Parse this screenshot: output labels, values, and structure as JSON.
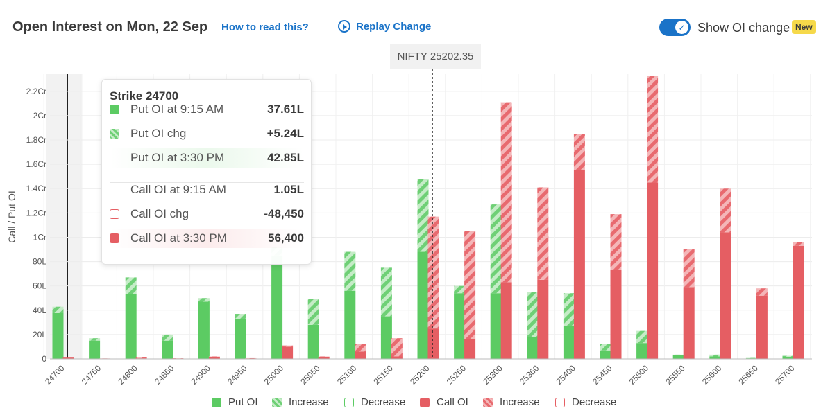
{
  "header": {
    "title": "Open Interest on Mon, 22 Sep",
    "how_to_read": "How to read this?",
    "replay": "Replay Change",
    "toggle_label": "Show OI change",
    "new_badge": "New",
    "toggle_on": true
  },
  "spot_label": "NIFTY 25202.35",
  "colors": {
    "put": "#5ccb63",
    "put_light": "#a6e3a8",
    "call": "#e55e63",
    "call_light": "#f0a5a8",
    "accent": "#1a73c8"
  },
  "tooltip": {
    "title": "Strike 24700",
    "rows": [
      {
        "label": "Put OI at 9:15 AM",
        "value": "37.61L",
        "icon": "put-solid"
      },
      {
        "label": "Put OI chg",
        "value": "+5.24L",
        "icon": "put-hatched"
      },
      {
        "label": "Put OI at 3:30 PM",
        "value": "42.85L",
        "icon": "put-highlight"
      },
      {
        "label": "Call OI at 9:15 AM",
        "value": "1.05L",
        "icon": "none"
      },
      {
        "label": "Call OI chg",
        "value": "-48,450",
        "icon": "call-outline"
      },
      {
        "label": "Call OI at 3:30 PM",
        "value": "56,400",
        "icon": "call-solid"
      }
    ]
  },
  "legend": [
    "Put OI",
    "Increase",
    "Decrease",
    "Call OI",
    "Increase",
    "Decrease"
  ],
  "chart_data": {
    "type": "bar",
    "ylabel": "Call / Put OI",
    "y_ticks": [
      {
        "v": 0,
        "label": "0"
      },
      {
        "v": 20,
        "label": "20L"
      },
      {
        "v": 40,
        "label": "40L"
      },
      {
        "v": 60,
        "label": "60L"
      },
      {
        "v": 80,
        "label": "80L"
      },
      {
        "v": 100,
        "label": "1Cr"
      },
      {
        "v": 120,
        "label": "1.2Cr"
      },
      {
        "v": 140,
        "label": "1.4Cr"
      },
      {
        "v": 160,
        "label": "1.6Cr"
      },
      {
        "v": 180,
        "label": "1.8Cr"
      },
      {
        "v": 200,
        "label": "2Cr"
      },
      {
        "v": 220,
        "label": "2.2Cr"
      }
    ],
    "ylim": [
      0,
      233
    ],
    "spot": 25202.35,
    "highlighted_strike": "24700",
    "categories": [
      "24700",
      "24750",
      "24800",
      "24850",
      "24900",
      "24950",
      "25000",
      "25050",
      "25100",
      "25150",
      "25200",
      "25250",
      "25300",
      "25350",
      "25400",
      "25450",
      "25500",
      "25550",
      "25600",
      "25650",
      "25700"
    ],
    "series": [
      {
        "name": "Put OI",
        "start": [
          37.6,
          15,
          53,
          15,
          47,
          33,
          85,
          28,
          56,
          35,
          88,
          54,
          54,
          18,
          27,
          7,
          13,
          3,
          2,
          0.5,
          1.5
        ],
        "end": [
          42.9,
          17,
          67,
          20,
          50,
          37,
          92,
          49,
          88,
          75,
          148,
          60,
          127,
          55,
          54,
          12,
          23,
          3.5,
          3.5,
          0.8,
          2.5
        ]
      },
      {
        "name": "Call OI",
        "start": [
          1.05,
          0.3,
          0.5,
          0.2,
          1.5,
          0.3,
          10,
          1.5,
          6,
          2,
          25,
          16,
          63,
          65,
          155,
          73,
          145,
          59,
          104,
          52,
          93
        ],
        "end": [
          0.56,
          0.4,
          1.5,
          0.5,
          2,
          0.6,
          11,
          2,
          12,
          17,
          117,
          105,
          211,
          141,
          185,
          119,
          233,
          90,
          140,
          58,
          96
        ]
      }
    ]
  }
}
